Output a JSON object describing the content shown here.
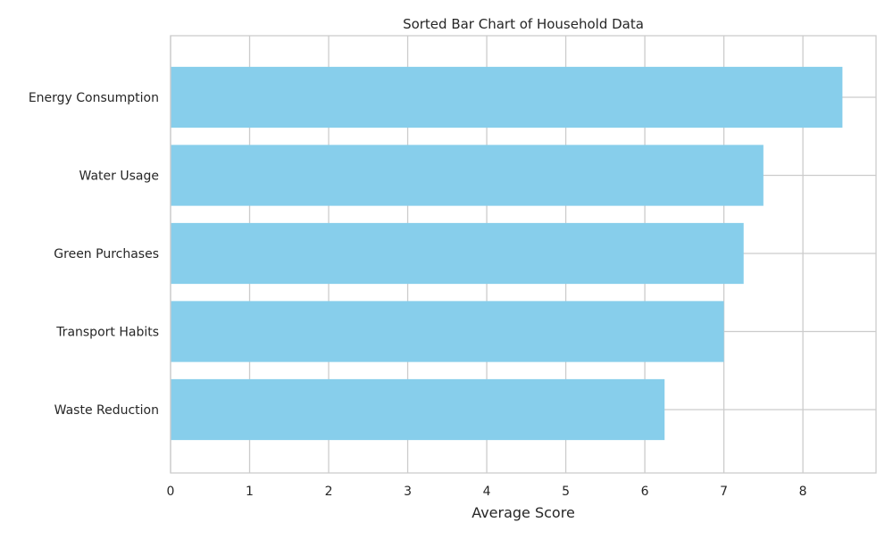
{
  "chart_data": {
    "type": "bar",
    "orientation": "horizontal",
    "title": "Sorted Bar Chart of Household Data",
    "xlabel": "Average Score",
    "ylabel": "",
    "categories": [
      "Energy Consumption",
      "Water Usage",
      "Green Purchases",
      "Transport Habits",
      "Waste Reduction"
    ],
    "values": [
      8.5,
      7.5,
      7.25,
      7.0,
      6.25
    ],
    "xlim": [
      0,
      8.925
    ],
    "xticks": [
      0,
      1,
      2,
      3,
      4,
      5,
      6,
      7,
      8
    ],
    "xtick_labels": [
      "0",
      "1",
      "2",
      "3",
      "4",
      "5",
      "6",
      "7",
      "8"
    ],
    "grid": true,
    "legend": "none",
    "colors": {
      "bar": "#87ceeb",
      "grid": "#cccccc",
      "spine": "#cccccc",
      "text": "#262626",
      "background": "#ffffff"
    }
  }
}
